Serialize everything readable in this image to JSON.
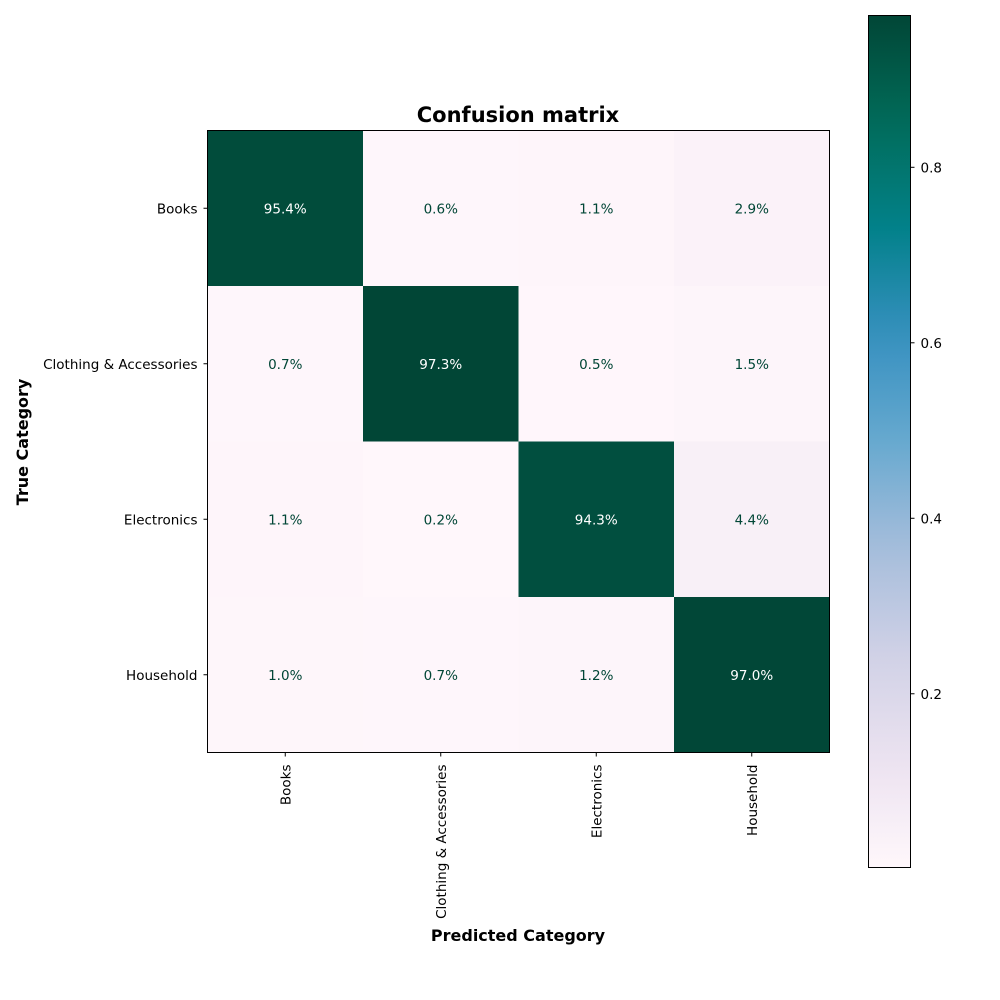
{
  "chart_data": {
    "type": "heatmap",
    "title": "Confusion matrix",
    "xlabel": "Predicted Category",
    "ylabel": "True Category",
    "x_categories": [
      "Books",
      "Clothing & Accessories",
      "Electronics",
      "Household"
    ],
    "y_categories": [
      "Books",
      "Clothing & Accessories",
      "Electronics",
      "Household"
    ],
    "values": [
      [
        0.954,
        0.006,
        0.011,
        0.029
      ],
      [
        0.007,
        0.973,
        0.005,
        0.015
      ],
      [
        0.011,
        0.002,
        0.943,
        0.044
      ],
      [
        0.01,
        0.007,
        0.012,
        0.97
      ]
    ],
    "cell_labels": [
      [
        "95.4%",
        "0.6%",
        "1.1%",
        "2.9%"
      ],
      [
        "0.7%",
        "97.3%",
        "0.5%",
        "1.5%"
      ],
      [
        "1.1%",
        "0.2%",
        "94.3%",
        "4.4%"
      ],
      [
        "1.0%",
        "0.7%",
        "1.2%",
        "97.0%"
      ]
    ],
    "colormap": "PuBuGn",
    "color_range": [
      0.002,
      0.973
    ],
    "colorbar": {
      "ticks": [
        0.2,
        0.4,
        0.6,
        0.8
      ],
      "tick_labels": [
        "0.2",
        "0.4",
        "0.6",
        "0.8"
      ]
    },
    "colors": {
      "low": "#fff7fb",
      "high": "#014636",
      "text_on_dark": "#ffffff",
      "text_on_light": "#014636"
    }
  }
}
